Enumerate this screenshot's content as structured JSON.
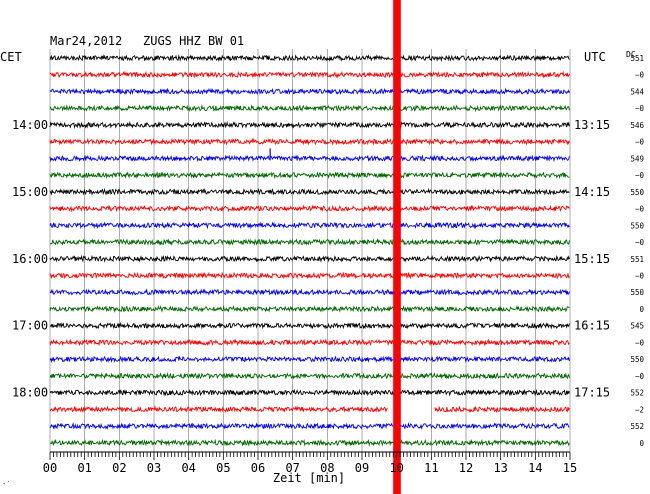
{
  "header": {
    "date": "Mar24,2012",
    "station": "ZUGS HHZ BW 01",
    "left_zone": "CET",
    "right_zone": "UTC",
    "dc_label": "DC"
  },
  "chart_data": {
    "type": "line",
    "title": "Mar24,2012   ZUGS HHZ BW 01",
    "xlabel": "Zeit [min]",
    "xlim": [
      0,
      15
    ],
    "x_ticks": [
      "00",
      "01",
      "02",
      "03",
      "04",
      "05",
      "06",
      "07",
      "08",
      "09",
      "10",
      "11",
      "12",
      "13",
      "14",
      "15"
    ],
    "num_traces": 24,
    "trace_color_cycle": [
      "#000000",
      "#ff0000",
      "#0000ff",
      "#006600"
    ],
    "left_time_labels": [
      {
        "trace": 4,
        "label": "14:00"
      },
      {
        "trace": 8,
        "label": "15:00"
      },
      {
        "trace": 12,
        "label": "16:00"
      },
      {
        "trace": 16,
        "label": "17:00"
      },
      {
        "trace": 20,
        "label": "18:00"
      }
    ],
    "right_time_labels": [
      {
        "trace": 4,
        "label": "13:15"
      },
      {
        "trace": 8,
        "label": "14:15"
      },
      {
        "trace": 12,
        "label": "15:15"
      },
      {
        "trace": 16,
        "label": "16:15"
      },
      {
        "trace": 20,
        "label": "17:15"
      }
    ],
    "dc_offsets": [
      "551",
      "−0",
      "544",
      "−0",
      "546",
      "−0",
      "549",
      "−0",
      "550",
      "−0",
      "550",
      "−0",
      "551",
      "−0",
      "550",
      "0",
      "545",
      "−0",
      "550",
      "−0",
      "552",
      "−2",
      "552",
      "0"
    ],
    "highlight": {
      "x_start": 9.9,
      "x_end": 10.12,
      "color": "#ff0000"
    },
    "corner_mark": "·′"
  }
}
